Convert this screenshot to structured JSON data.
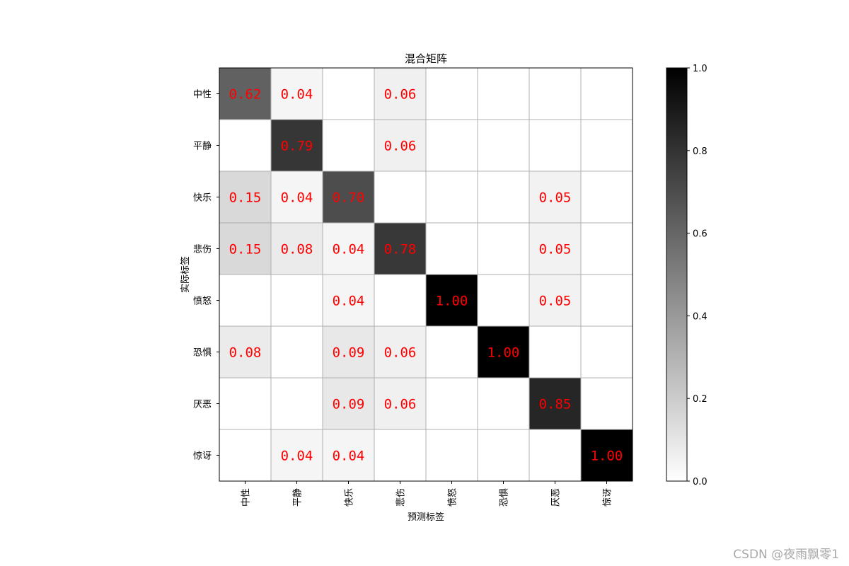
{
  "chart_data": {
    "type": "heatmap",
    "title": "混合矩阵",
    "xlabel": "预测标签",
    "ylabel": "实际标签",
    "x_categories": [
      "中性",
      "平静",
      "快乐",
      "悲伤",
      "愤怒",
      "恐惧",
      "厌恶",
      "惊讶"
    ],
    "y_categories": [
      "中性",
      "平静",
      "快乐",
      "悲伤",
      "愤怒",
      "恐惧",
      "厌恶",
      "惊讶"
    ],
    "values": [
      [
        0.62,
        0.04,
        0,
        0.06,
        0,
        0,
        0,
        0
      ],
      [
        0,
        0.79,
        0,
        0.06,
        0,
        0,
        0,
        0
      ],
      [
        0.15,
        0.04,
        0.7,
        0,
        0,
        0,
        0.05,
        0
      ],
      [
        0.15,
        0.08,
        0.04,
        0.78,
        0,
        0,
        0.05,
        0
      ],
      [
        0,
        0,
        0.04,
        0,
        1.0,
        0,
        0.05,
        0
      ],
      [
        0.08,
        0,
        0.09,
        0.06,
        0,
        1.0,
        0,
        0
      ],
      [
        0,
        0,
        0.09,
        0.06,
        0,
        0,
        0.85,
        0
      ],
      [
        0,
        0.04,
        0.04,
        0,
        0,
        0,
        0,
        1.0
      ]
    ],
    "cell_labels": [
      [
        "0.62",
        "0.04",
        "",
        "0.06",
        "",
        "",
        "",
        ""
      ],
      [
        "",
        "0.79",
        "",
        "0.06",
        "",
        "",
        "",
        ""
      ],
      [
        "0.15",
        "0.04",
        "0.70",
        "",
        "",
        "",
        "0.05",
        ""
      ],
      [
        "0.15",
        "0.08",
        "0.04",
        "0.78",
        "",
        "",
        "0.05",
        ""
      ],
      [
        "",
        "",
        "0.04",
        "",
        "1.00",
        "",
        "0.05",
        ""
      ],
      [
        "0.08",
        "",
        "0.09",
        "0.06",
        "",
        "1.00",
        "",
        ""
      ],
      [
        "",
        "",
        "0.09",
        "0.06",
        "",
        "",
        "0.85",
        ""
      ],
      [
        "",
        "0.04",
        "0.04",
        "",
        "",
        "",
        "",
        "1.00"
      ]
    ],
    "colormap": "Greys",
    "vmin": 0,
    "vmax": 1,
    "annotation_color": "#ff0000",
    "grid": true,
    "colorbar": {
      "ticks": [
        0.0,
        0.2,
        0.4,
        0.6,
        0.8,
        1.0
      ],
      "tick_labels": [
        "0.0",
        "0.2",
        "0.4",
        "0.6",
        "0.8",
        "1.0"
      ]
    }
  },
  "watermark": "CSDN @夜雨飘零1"
}
